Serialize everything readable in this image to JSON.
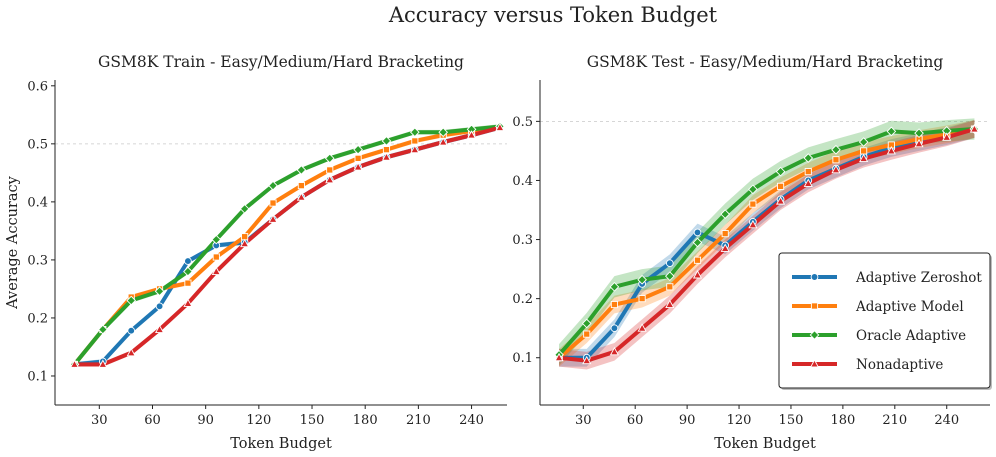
{
  "figure": {
    "title": "Accuracy versus Token Budget"
  },
  "colors": {
    "adaptive_zeroshot": "#1f77b4",
    "adaptive_model": "#ff7f0e",
    "oracle_adaptive": "#2ca02c",
    "nonadaptive": "#d62728"
  },
  "chart_data": [
    {
      "type": "line",
      "title": "GSM8K Train - Easy/Medium/Hard Bracketing",
      "xlabel": "Token Budget",
      "ylabel": "Average Accuracy",
      "xlim": [
        5,
        260
      ],
      "ylim": [
        0.05,
        0.61
      ],
      "xticks": [
        "30",
        "60",
        "90",
        "120",
        "150",
        "180",
        "210",
        "240"
      ],
      "yticks": [
        "0.1",
        "0.2",
        "0.3",
        "0.4",
        "0.5",
        "0.6"
      ],
      "reference_line": 0.5,
      "series": [
        {
          "name": "Adaptive Zeroshot",
          "color": "#1f77b4",
          "marker": "circle",
          "band": 0.004,
          "x": [
            16,
            32,
            48,
            64,
            80,
            96,
            112,
            128,
            144,
            160,
            176,
            192,
            208,
            224,
            240,
            256
          ],
          "y": [
            0.12,
            0.125,
            0.178,
            0.22,
            0.298,
            0.325,
            0.33,
            0.37,
            0.408,
            0.438,
            0.46,
            0.477,
            0.49,
            0.503,
            0.515,
            0.528
          ]
        },
        {
          "name": "Adaptive Model",
          "color": "#ff7f0e",
          "marker": "square",
          "band": 0.004,
          "x": [
            16,
            32,
            48,
            64,
            80,
            96,
            112,
            128,
            144,
            160,
            176,
            192,
            208,
            224,
            240,
            256
          ],
          "y": [
            0.12,
            0.18,
            0.236,
            0.25,
            0.26,
            0.305,
            0.34,
            0.398,
            0.428,
            0.455,
            0.475,
            0.49,
            0.505,
            0.515,
            0.522,
            0.528
          ]
        },
        {
          "name": "Oracle Adaptive",
          "color": "#2ca02c",
          "marker": "diamond",
          "band": 0.004,
          "x": [
            16,
            32,
            48,
            64,
            80,
            96,
            112,
            128,
            144,
            160,
            176,
            192,
            208,
            224,
            240,
            256
          ],
          "y": [
            0.12,
            0.18,
            0.23,
            0.246,
            0.28,
            0.335,
            0.388,
            0.428,
            0.455,
            0.475,
            0.49,
            0.505,
            0.52,
            0.52,
            0.525,
            0.53
          ]
        },
        {
          "name": "Nonadaptive",
          "color": "#d62728",
          "marker": "triangle",
          "band": 0.004,
          "x": [
            16,
            32,
            48,
            64,
            80,
            96,
            112,
            128,
            144,
            160,
            176,
            192,
            208,
            224,
            240,
            256
          ],
          "y": [
            0.12,
            0.12,
            0.14,
            0.18,
            0.225,
            0.28,
            0.328,
            0.37,
            0.408,
            0.438,
            0.46,
            0.477,
            0.49,
            0.503,
            0.515,
            0.528
          ]
        }
      ]
    },
    {
      "type": "line",
      "title": "GSM8K Test - Easy/Medium/Hard Bracketing",
      "xlabel": "Token Budget",
      "ylabel": "",
      "xlim": [
        5,
        265
      ],
      "ylim": [
        0.02,
        0.57
      ],
      "xticks": [
        "30",
        "60",
        "90",
        "120",
        "150",
        "180",
        "210",
        "240"
      ],
      "yticks": [
        "0.1",
        "0.2",
        "0.3",
        "0.4",
        "0.5"
      ],
      "reference_line": 0.5,
      "legend": "lower-right",
      "series": [
        {
          "name": "Adaptive Zeroshot",
          "color": "#1f77b4",
          "marker": "circle",
          "band": 0.015,
          "x": [
            16,
            32,
            48,
            64,
            80,
            96,
            112,
            128,
            144,
            160,
            176,
            192,
            208,
            224,
            240,
            256
          ],
          "y": [
            0.1,
            0.1,
            0.15,
            0.225,
            0.26,
            0.312,
            0.29,
            0.33,
            0.368,
            0.4,
            0.42,
            0.44,
            0.455,
            0.465,
            0.475,
            0.487
          ]
        },
        {
          "name": "Adaptive Model",
          "color": "#ff7f0e",
          "marker": "square",
          "band": 0.015,
          "x": [
            16,
            32,
            48,
            64,
            80,
            96,
            112,
            128,
            144,
            160,
            176,
            192,
            208,
            224,
            240,
            256
          ],
          "y": [
            0.1,
            0.14,
            0.19,
            0.2,
            0.22,
            0.265,
            0.31,
            0.36,
            0.39,
            0.415,
            0.435,
            0.45,
            0.46,
            0.47,
            0.478,
            0.487
          ]
        },
        {
          "name": "Oracle Adaptive",
          "color": "#2ca02c",
          "marker": "diamond",
          "band": 0.018,
          "x": [
            16,
            32,
            48,
            64,
            80,
            96,
            112,
            128,
            144,
            160,
            176,
            192,
            208,
            224,
            240,
            256
          ],
          "y": [
            0.105,
            0.158,
            0.22,
            0.232,
            0.238,
            0.295,
            0.343,
            0.385,
            0.415,
            0.438,
            0.452,
            0.465,
            0.483,
            0.48,
            0.484,
            0.487
          ]
        },
        {
          "name": "Nonadaptive",
          "color": "#d62728",
          "marker": "triangle",
          "band": 0.015,
          "x": [
            16,
            32,
            48,
            64,
            80,
            96,
            112,
            128,
            144,
            160,
            176,
            192,
            208,
            224,
            240,
            256
          ],
          "y": [
            0.1,
            0.095,
            0.11,
            0.15,
            0.19,
            0.24,
            0.285,
            0.325,
            0.365,
            0.395,
            0.418,
            0.437,
            0.45,
            0.462,
            0.473,
            0.487
          ]
        }
      ]
    }
  ]
}
